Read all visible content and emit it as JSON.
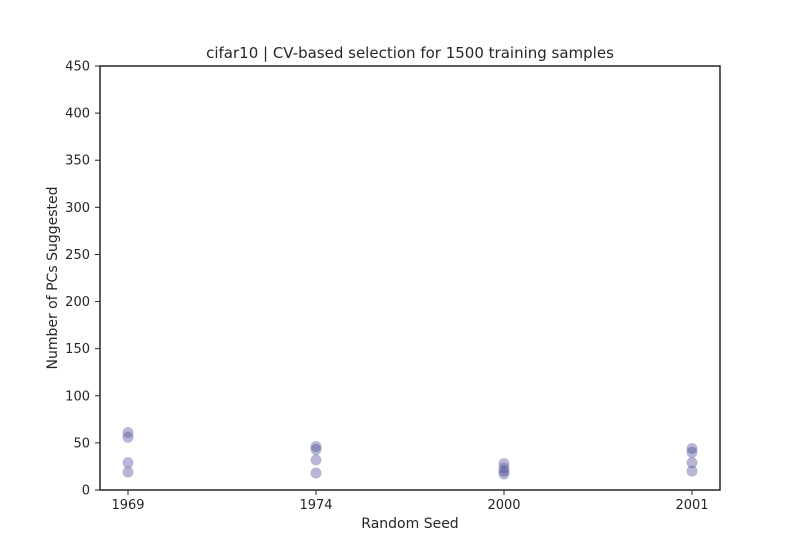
{
  "chart_data": {
    "type": "scatter",
    "title": "cifar10 | CV-based selection for 1500 training samples",
    "xlabel": "Random Seed",
    "ylabel": "Number of PCs Suggested",
    "categories": [
      "1969",
      "1974",
      "2000",
      "2001"
    ],
    "ylim": [
      0,
      450
    ],
    "yticks": [
      0,
      50,
      100,
      150,
      200,
      250,
      300,
      350,
      400,
      450
    ],
    "grid": false,
    "marker_color": "#4b4b96",
    "marker_opacity": 0.4,
    "points": [
      {
        "x": "1969",
        "y": 61
      },
      {
        "x": "1969",
        "y": 56
      },
      {
        "x": "1969",
        "y": 29
      },
      {
        "x": "1969",
        "y": 19
      },
      {
        "x": "1974",
        "y": 46
      },
      {
        "x": "1974",
        "y": 43
      },
      {
        "x": "1974",
        "y": 32
      },
      {
        "x": "1974",
        "y": 18
      },
      {
        "x": "2000",
        "y": 28
      },
      {
        "x": "2000",
        "y": 23
      },
      {
        "x": "2000",
        "y": 20
      },
      {
        "x": "2000",
        "y": 17
      },
      {
        "x": "2001",
        "y": 44
      },
      {
        "x": "2001",
        "y": 40
      },
      {
        "x": "2001",
        "y": 29
      },
      {
        "x": "2001",
        "y": 20
      }
    ]
  }
}
